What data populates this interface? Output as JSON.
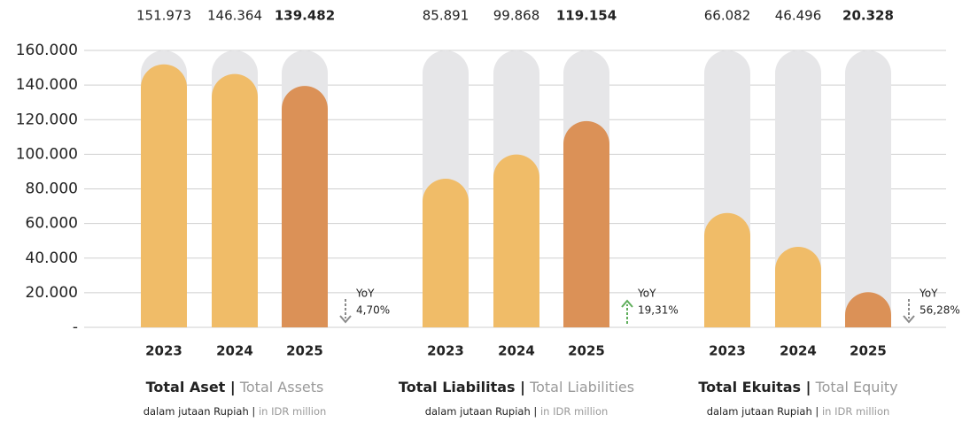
{
  "chart_data": {
    "type": "bar",
    "ylim": [
      0,
      160000
    ],
    "yticks": [
      {
        "value": 0,
        "label": "-"
      },
      {
        "value": 20000,
        "label": "20.000"
      },
      {
        "value": 40000,
        "label": "40.000"
      },
      {
        "value": 60000,
        "label": "60.000"
      },
      {
        "value": 80000,
        "label": "80.000"
      },
      {
        "value": 100000,
        "label": "100.000"
      },
      {
        "value": 120000,
        "label": "120.000"
      },
      {
        "value": 140000,
        "label": "140.000"
      },
      {
        "value": 160000,
        "label": "160.000"
      }
    ],
    "grid": true,
    "track_color": "#e6e6e8",
    "colors": [
      "#f0bc68",
      "#f0bc68",
      "#db9157"
    ],
    "groups": [
      {
        "title": "Total Aset |",
        "title_en": "Total Assets",
        "subtitle": "dalam jutaan Rupiah |",
        "subtitle_en": "in IDR million",
        "categories": [
          "2023",
          "2024",
          "2025"
        ],
        "values": [
          151973,
          146364,
          139482
        ],
        "value_labels": [
          "151.973",
          "146.364",
          "139.482"
        ],
        "yoy_label": "YoY",
        "yoy_change": 4.7,
        "yoy_change_label": "4,70%",
        "direction": "down",
        "arrow_color": "#8a8a8a"
      },
      {
        "title": "Total Liabilitas |",
        "title_en": "Total Liabilities",
        "subtitle": "dalam jutaan Rupiah |",
        "subtitle_en": "in IDR million",
        "categories": [
          "2023",
          "2024",
          "2025"
        ],
        "values": [
          85891,
          99868,
          119154
        ],
        "value_labels": [
          "85.891",
          "99.868",
          "119.154"
        ],
        "yoy_label": "YoY",
        "yoy_change": 19.31,
        "yoy_change_label": "19,31%",
        "direction": "up",
        "arrow_color": "#5fae5b"
      },
      {
        "title": "Total Ekuitas |",
        "title_en": "Total Equity",
        "subtitle": "dalam jutaan Rupiah |",
        "subtitle_en": "in IDR million",
        "categories": [
          "2023",
          "2024",
          "2025"
        ],
        "values": [
          66082,
          46496,
          20328
        ],
        "value_labels": [
          "66.082",
          "46.496",
          "20.328"
        ],
        "yoy_label": "YoY",
        "yoy_change": 56.28,
        "yoy_change_label": "56,28%",
        "direction": "down",
        "arrow_color": "#8a8a8a"
      }
    ]
  }
}
